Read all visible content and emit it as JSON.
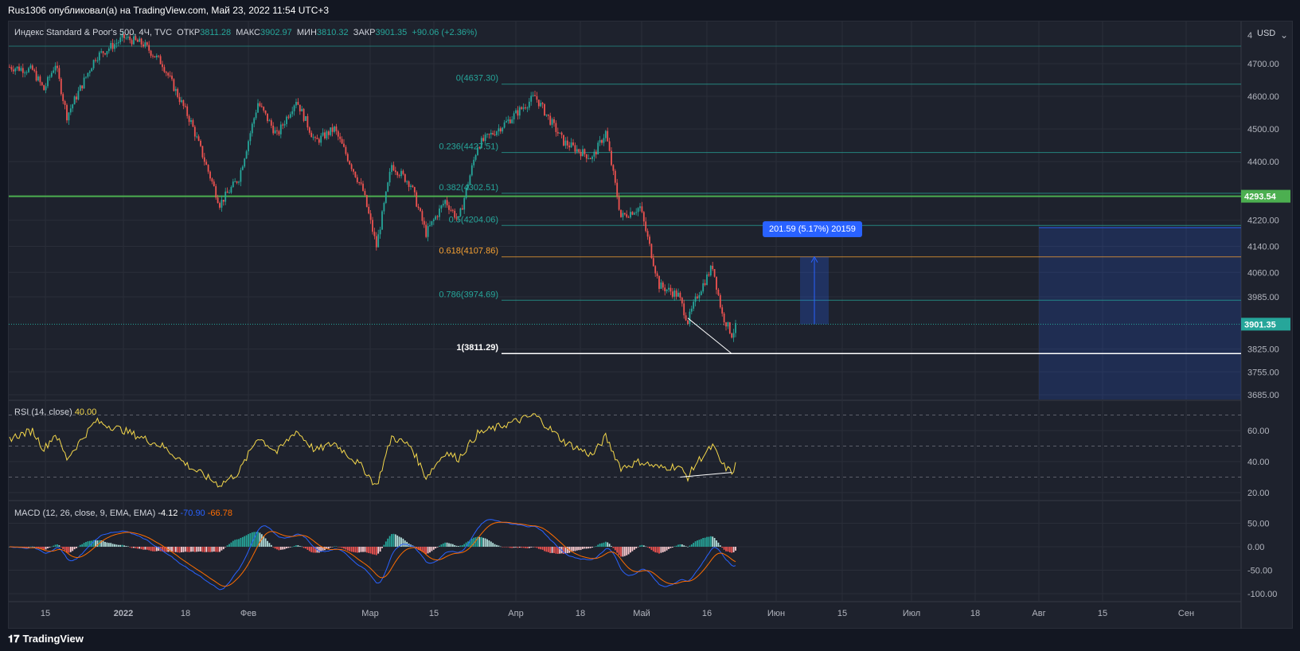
{
  "header": {
    "text": "Rus1306 опубликовал(а) на TradingView.com, Май 23, 2022 11:54 UTC+3"
  },
  "main_legend": {
    "symbol": "Индекс Standard & Poor's 500, 4Ч, TVC",
    "open_label": "ОТКР",
    "open": "3811.28",
    "high_label": "МАКС",
    "high": "3902.97",
    "low_label": "МИН",
    "low": "3810.32",
    "close_label": "ЗАКР",
    "close": "3901.35",
    "change": "+90.06 (+2.36%)"
  },
  "currency": "USD",
  "footer": {
    "brand": "TradingView"
  },
  "colors": {
    "bg": "#1e222d",
    "up": "#26a69a",
    "down": "#ef5350",
    "grid": "#2a2e39",
    "text": "#b2b5be",
    "rsi": "#f5d84b",
    "macd": "#2962ff",
    "signal": "#ff6d00",
    "green_line": "#4caf50",
    "measure": "#2962ff"
  },
  "chart_data": [
    {
      "type": "candlestick",
      "title": "Индекс Standard & Poor's 500, 4Ч, TVC",
      "ylim": [
        3650,
        4800
      ],
      "y_ticks": [
        4700,
        4600,
        4500,
        4400,
        4293.54,
        4220,
        4140,
        4060,
        3985,
        3901.35,
        3825,
        3755,
        3685
      ],
      "y_tick_labels": [
        "4700.00",
        "4600.00",
        "4500.00",
        "4400.00",
        "4293.54",
        "4220.00",
        "4140.00",
        "4060.00",
        "3985.00",
        "3901.35",
        "3825.00",
        "3755.00",
        "3685.00"
      ],
      "x_tick_labels": [
        "15",
        "2022",
        "18",
        "Фев",
        "Мар",
        "15",
        "Апр",
        "18",
        "Май",
        "16",
        "Июн",
        "15",
        "Июл",
        "18",
        "Авг",
        "15",
        "Сен"
      ],
      "price_levels": [
        {
          "label": "0(4637.30)",
          "value": 4637.3
        },
        {
          "label": "0.236(4427.51)",
          "value": 4427.51
        },
        {
          "label": "0.382(4302.51)",
          "value": 4302.51
        },
        {
          "label": "0.5(4204.06)",
          "value": 4204.06
        },
        {
          "label": "0.618(4107.86)",
          "value": 4107.86
        },
        {
          "label": "0.786(3974.69)",
          "value": 3974.69
        },
        {
          "label": "1(3811.29)",
          "value": 3811.29
        }
      ],
      "horizontal_line": 4293.54,
      "last_price": 3901.35,
      "measure_label": "201.59 (5.17%) 20159",
      "anchors": [
        [
          0,
          4690
        ],
        [
          12,
          4680
        ],
        [
          18,
          4620
        ],
        [
          24,
          4700
        ],
        [
          30,
          4540
        ],
        [
          45,
          4720
        ],
        [
          60,
          4780
        ],
        [
          70,
          4760
        ],
        [
          80,
          4700
        ],
        [
          95,
          4520
        ],
        [
          110,
          4270
        ],
        [
          120,
          4350
        ],
        [
          130,
          4580
        ],
        [
          140,
          4480
        ],
        [
          150,
          4590
        ],
        [
          160,
          4460
        ],
        [
          170,
          4500
        ],
        [
          185,
          4310
        ],
        [
          192,
          4140
        ],
        [
          200,
          4390
        ],
        [
          210,
          4330
        ],
        [
          218,
          4180
        ],
        [
          228,
          4280
        ],
        [
          235,
          4220
        ],
        [
          245,
          4450
        ],
        [
          260,
          4520
        ],
        [
          275,
          4600
        ],
        [
          290,
          4460
        ],
        [
          305,
          4410
        ],
        [
          312,
          4490
        ],
        [
          320,
          4230
        ],
        [
          330,
          4260
        ],
        [
          340,
          4020
        ],
        [
          350,
          3990
        ],
        [
          355,
          3910
        ],
        [
          360,
          3990
        ],
        [
          368,
          4080
        ],
        [
          373,
          3930
        ],
        [
          378,
          3870
        ],
        [
          381,
          3901
        ]
      ]
    },
    {
      "type": "line",
      "title": "RSI (14, close)",
      "value_label": "40.00",
      "ylim": [
        15,
        75
      ],
      "bands": [
        70,
        50,
        30
      ],
      "y_tick_labels": [
        "60.00",
        "40.00",
        "20.00"
      ],
      "anchors": [
        [
          0,
          55
        ],
        [
          12,
          60
        ],
        [
          18,
          48
        ],
        [
          24,
          58
        ],
        [
          30,
          42
        ],
        [
          45,
          66
        ],
        [
          60,
          60
        ],
        [
          70,
          55
        ],
        [
          80,
          50
        ],
        [
          95,
          36
        ],
        [
          110,
          25
        ],
        [
          120,
          33
        ],
        [
          130,
          56
        ],
        [
          140,
          46
        ],
        [
          150,
          60
        ],
        [
          160,
          47
        ],
        [
          170,
          52
        ],
        [
          185,
          36
        ],
        [
          192,
          24
        ],
        [
          200,
          56
        ],
        [
          210,
          50
        ],
        [
          218,
          30
        ],
        [
          228,
          46
        ],
        [
          235,
          42
        ],
        [
          245,
          58
        ],
        [
          260,
          64
        ],
        [
          275,
          70
        ],
        [
          290,
          53
        ],
        [
          305,
          44
        ],
        [
          312,
          56
        ],
        [
          320,
          36
        ],
        [
          330,
          40
        ],
        [
          340,
          36
        ],
        [
          350,
          37
        ],
        [
          355,
          30
        ],
        [
          360,
          40
        ],
        [
          368,
          50
        ],
        [
          373,
          38
        ],
        [
          378,
          33
        ],
        [
          381,
          40
        ]
      ]
    },
    {
      "type": "bar+line",
      "title": "MACD (12, 26, close, 9, EMA, EMA)",
      "values_label": [
        "-4.12",
        "-70.90",
        "-66.78"
      ],
      "series": [
        {
          "name": "",
          "kind": "histogram",
          "last": -4.12
        },
        {
          "name": "",
          "kind": "line",
          "last": -70.9
        },
        {
          "name": "",
          "kind": "line",
          "last": -66.78
        }
      ],
      "ylim": [
        -110,
        70
      ],
      "y_tick_labels": [
        "50.00",
        "0.00",
        "-50.00",
        "-100.00"
      ]
    }
  ]
}
